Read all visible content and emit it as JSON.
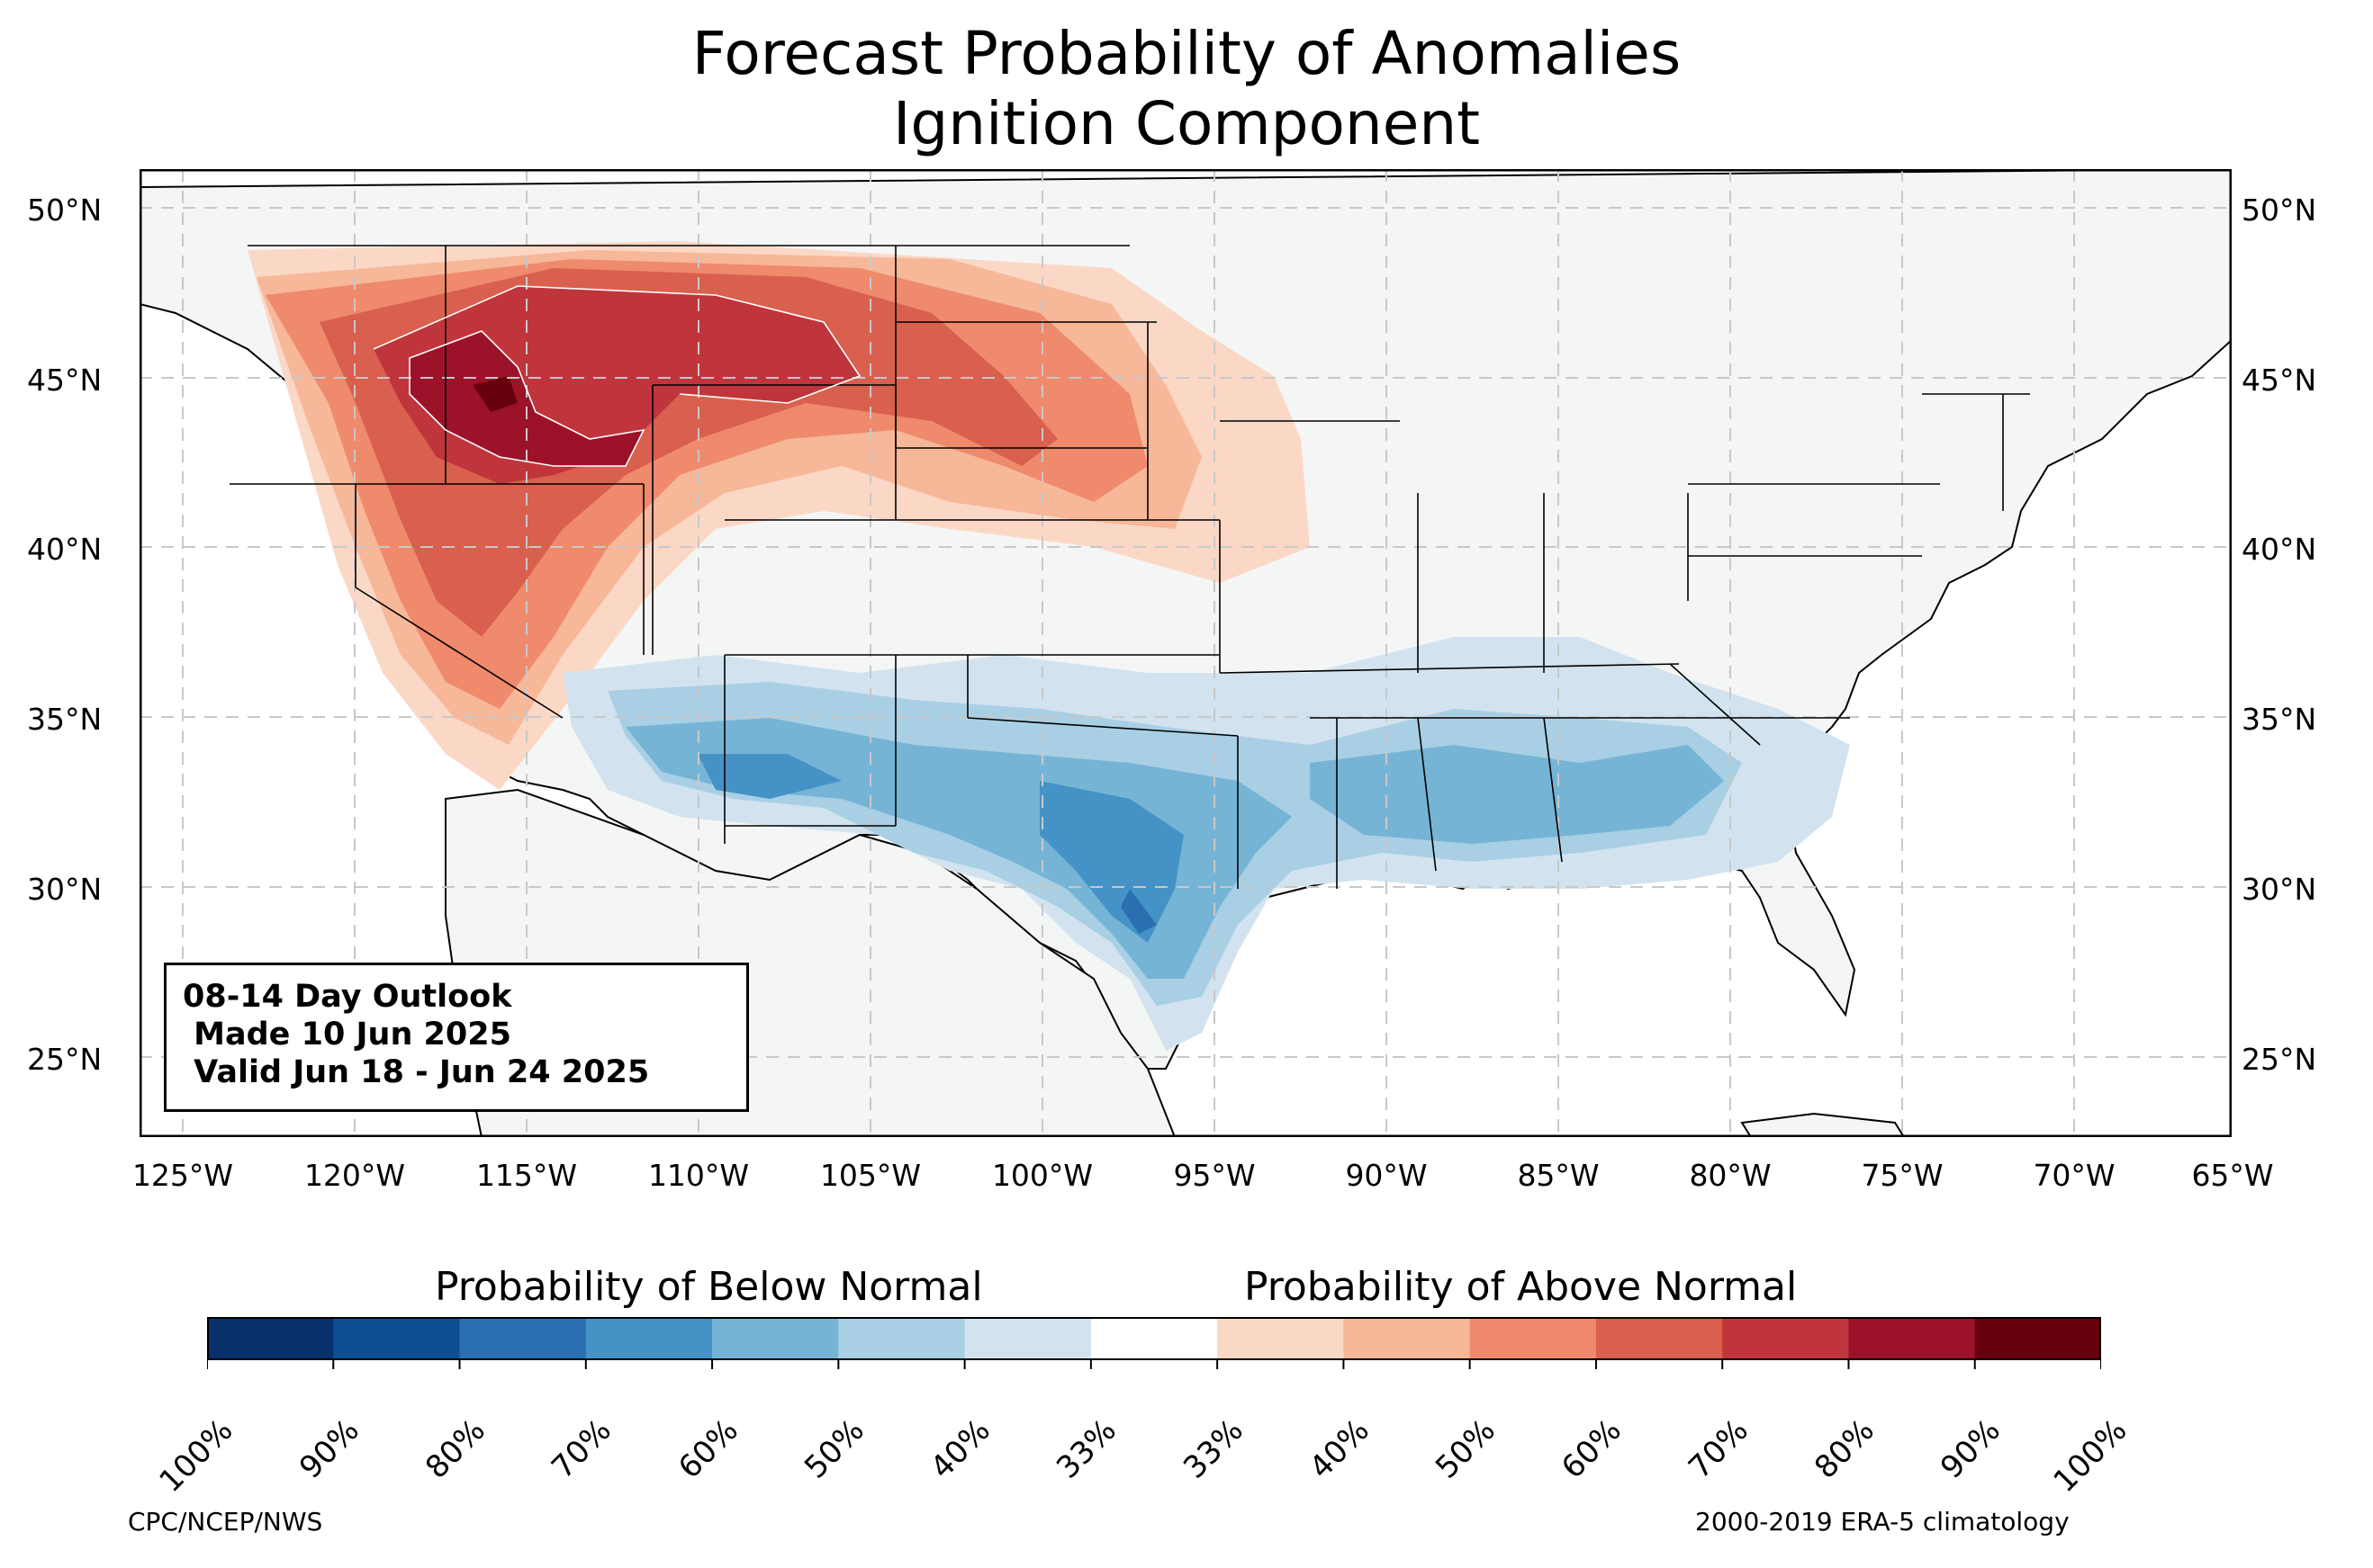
{
  "title": {
    "line1": "Forecast Probability of Anomalies",
    "line2": "Ignition Component"
  },
  "map": {
    "lat_ticks": [
      "50°N",
      "45°N",
      "40°N",
      "35°N",
      "30°N",
      "25°N"
    ],
    "lon_ticks": [
      "125°W",
      "120°W",
      "115°W",
      "110°W",
      "105°W",
      "100°W",
      "95°W",
      "90°W",
      "85°W",
      "80°W",
      "75°W",
      "70°W",
      "65°W"
    ],
    "colors": {
      "land": "#f4f6f6",
      "grid": "#c8c8c8",
      "border": "#000000",
      "county": "#8c8c8c"
    }
  },
  "outlook": {
    "line1": "08-14 Day Outlook",
    "line2": " Made 10 Jun 2025",
    "line3": " Valid Jun 18 - Jun 24 2025"
  },
  "colorbar": {
    "below_label": "Probability of Below Normal",
    "above_label": "Probability of Above Normal",
    "ticks": [
      "100%",
      "90%",
      "80%",
      "70%",
      "60%",
      "50%",
      "40%",
      "33%",
      "33%",
      "40%",
      "50%",
      "60%",
      "70%",
      "80%",
      "90%",
      "100%"
    ],
    "colors": [
      "#08306b",
      "#0d4f94",
      "#2a70b0",
      "#4593c6",
      "#76b4d6",
      "#a9cfe5",
      "#d2e3ef",
      "#ffffff",
      "#fbd8c6",
      "#f7b799",
      "#ef8a6c",
      "#d9604e",
      "#c0353b",
      "#9c1229",
      "#67000d"
    ]
  },
  "credits": {
    "left": "CPC/NCEP/NWS",
    "right": "2000-2019 ERA-5 climatology"
  }
}
